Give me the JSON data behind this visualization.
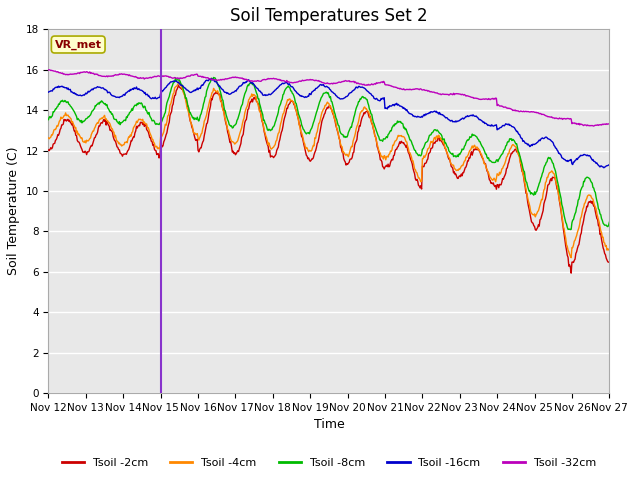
{
  "title": "Soil Temperatures Set 2",
  "xlabel": "Time",
  "ylabel": "Soil Temperature (C)",
  "ylim": [
    0,
    18
  ],
  "yticks": [
    0,
    2,
    4,
    6,
    8,
    10,
    12,
    14,
    16,
    18
  ],
  "xlim": [
    0,
    360
  ],
  "x_tick_labels": [
    "Nov 12",
    "Nov 13",
    "Nov 14",
    "Nov 15",
    "Nov 16",
    "Nov 17",
    "Nov 18",
    "Nov 19",
    "Nov 20",
    "Nov 21",
    "Nov 22",
    "Nov 23",
    "Nov 24",
    "Nov 25",
    "Nov 26",
    "Nov 27"
  ],
  "x_tick_positions": [
    0,
    24,
    48,
    72,
    96,
    120,
    144,
    168,
    192,
    216,
    240,
    264,
    288,
    312,
    336,
    360
  ],
  "vline_x": 72,
  "vline_color": "#8833CC",
  "annotation_text": "VR_met",
  "bg_color": "#FFFFFF",
  "plot_bg_color": "#E8E8E8",
  "grid_color": "#FFFFFF",
  "series_colors": [
    "#CC0000",
    "#FF8800",
    "#00BB00",
    "#0000CC",
    "#BB00BB"
  ],
  "series_labels": [
    "Tsoil -2cm",
    "Tsoil -4cm",
    "Tsoil -8cm",
    "Tsoil -16cm",
    "Tsoil -32cm"
  ],
  "series_linewidth": 1.0,
  "title_fontsize": 12,
  "axis_label_fontsize": 9,
  "tick_fontsize": 7.5
}
